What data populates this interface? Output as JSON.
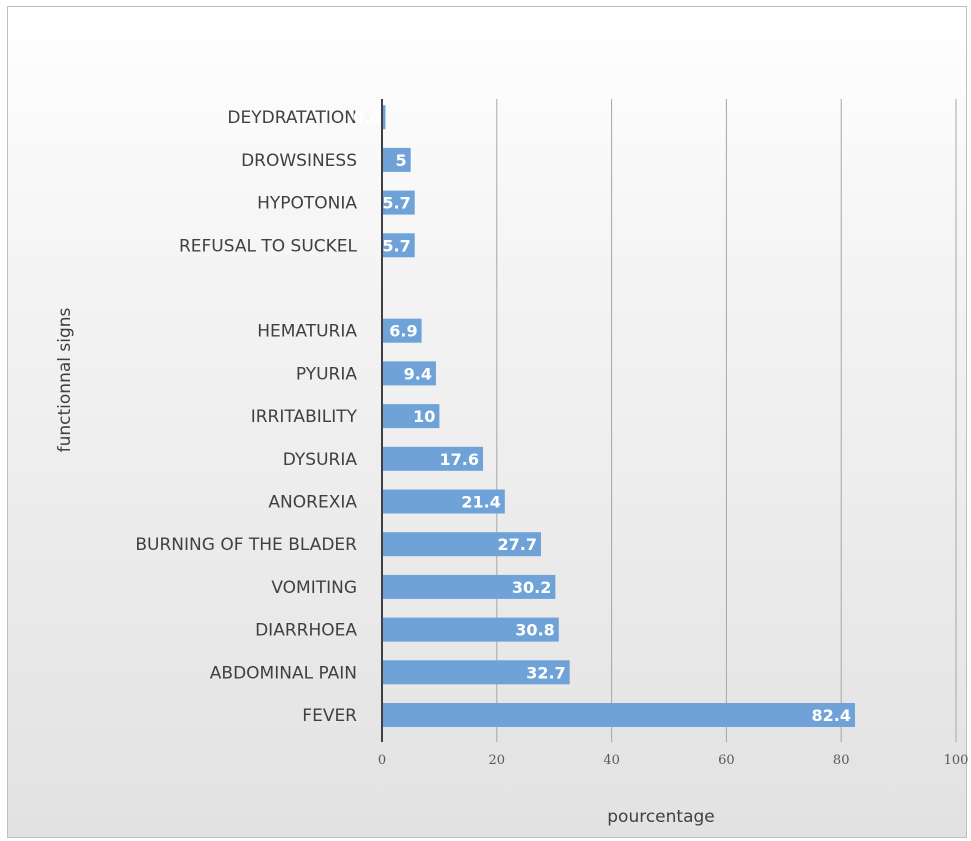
{
  "chart_data": {
    "type": "bar",
    "orientation": "horizontal",
    "categories": [
      "FEVER",
      "ABDOMINAL PAIN",
      "DIARRHOEA",
      "VOMITING",
      "BURNING OF THE BLADER",
      "ANOREXIA",
      "DYSURIA",
      "IRRITABILITY",
      "PYURIA",
      "HEMATURIA",
      "",
      "REFUSAL TO SUCKEL",
      "HYPOTONIA",
      "DROWSINESS",
      "DEYDRATATION"
    ],
    "values": [
      82.4,
      32.7,
      30.8,
      30.2,
      27.7,
      21.4,
      17.6,
      10,
      9.4,
      6.9,
      null,
      5.7,
      5.7,
      5,
      0.6
    ],
    "data_labels": [
      "82.4",
      "32.7",
      "30.8",
      "30.2",
      "27.7",
      "21.4",
      "17.6",
      "10",
      "9.4",
      "6.9",
      "",
      "5.7",
      "5.7",
      "5",
      "0.6"
    ],
    "title": "",
    "xlabel": "pourcentage",
    "ylabel": "functionnal signs",
    "xlim": [
      0,
      100
    ],
    "x_ticks": [
      0,
      20,
      40,
      60,
      80,
      100
    ],
    "grid": "vertical",
    "legend": "none",
    "bar_color": "#6fa3d8",
    "axis_color": "#404040",
    "gridline_color": "#a6a6a6"
  }
}
